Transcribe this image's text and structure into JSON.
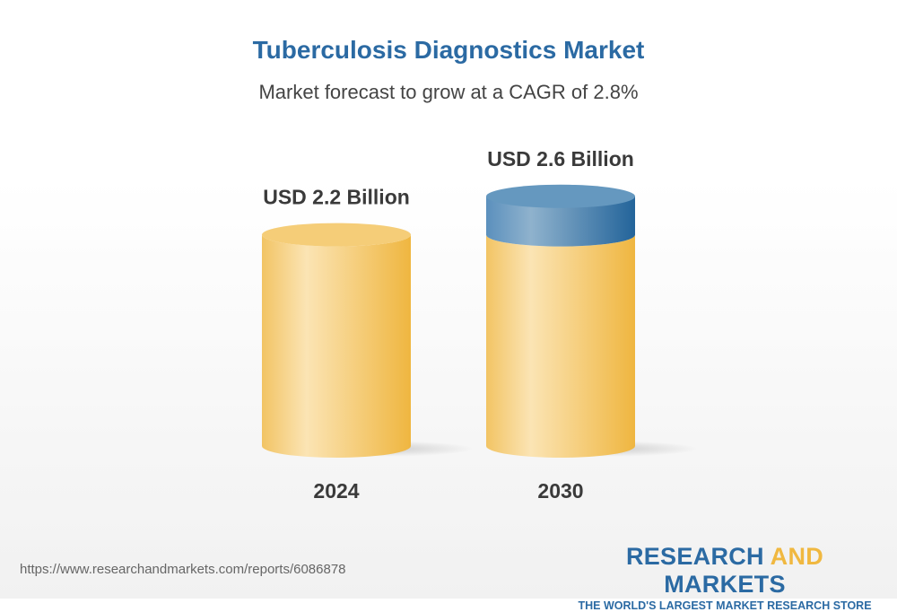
{
  "title": "Tuberculosis Diagnostics Market",
  "subtitle": "Market forecast to grow at a CAGR of 2.8%",
  "chart_data": {
    "type": "bar",
    "style": "3d-cylinder",
    "categories": [
      "2024",
      "2030"
    ],
    "values": [
      2.2,
      2.6
    ],
    "data_labels": [
      "USD 2.2 Billion",
      "USD 2.6 Billion"
    ],
    "unit": "USD Billion",
    "cagr": "2.8%",
    "colors": {
      "base": "#f2c15a",
      "growth": "#3f7fb0"
    }
  },
  "footer": {
    "url": "https://www.researchandmarkets.com/reports/6086878",
    "logo_part1": "RESEARCH ",
    "logo_part2": "AND",
    "logo_part3": " MARKETS",
    "tagline": "THE WORLD'S LARGEST MARKET RESEARCH STORE"
  }
}
